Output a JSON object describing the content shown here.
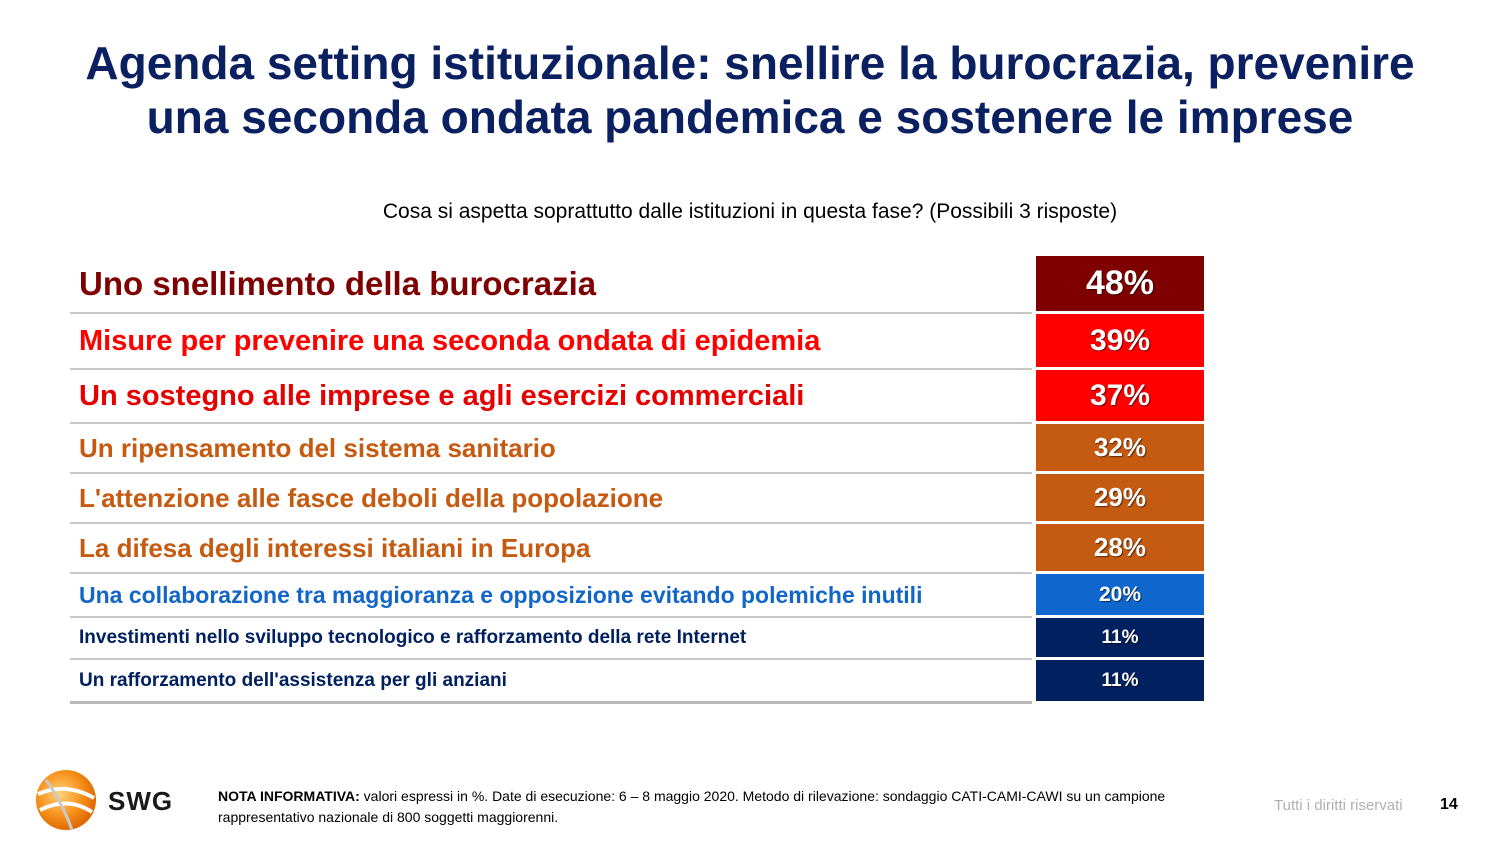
{
  "title_line1": "Agenda setting istituzionale: snellire la burocrazia, prevenire",
  "title_line2": "una seconda ondata pandemica e sostenere le imprese",
  "question": "Cosa si aspetta soprattutto dalle istituzioni in questa fase? (Possibili 3 risposte)",
  "rows": [
    {
      "label": "Uno snellimento della burocrazia",
      "value": "48%",
      "text_color": "#7f0000",
      "bg": "#7f0000"
    },
    {
      "label": "Misure per prevenire una seconda ondata di epidemia",
      "value": "39%",
      "text_color": "#ff0000",
      "bg": "#ff0000"
    },
    {
      "label": "Un sostegno alle imprese e agli esercizi commerciali",
      "value": "37%",
      "text_color": "#e60000",
      "bg": "#ff0000"
    },
    {
      "label": "Un ripensamento del sistema sanitario",
      "value": "32%",
      "text_color": "#c55a11",
      "bg": "#c55a11"
    },
    {
      "label": "L'attenzione alle fasce deboli della popolazione",
      "value": "29%",
      "text_color": "#c55a11",
      "bg": "#c55a11"
    },
    {
      "label": "La difesa degli interessi italiani in Europa",
      "value": "28%",
      "text_color": "#c55a11",
      "bg": "#c55a11"
    },
    {
      "label": "Una collaborazione tra maggioranza e opposizione evitando polemiche inutili",
      "value": "20%",
      "text_color": "#1266c7",
      "bg": "#0f66cc"
    },
    {
      "label": "Investimenti nello sviluppo tecnologico e rafforzamento della rete Internet",
      "value": "11%",
      "text_color": "#002060",
      "bg": "#002060"
    },
    {
      "label": "Un rafforzamento dell'assistenza per gli anziani",
      "value": "11%",
      "text_color": "#002060",
      "bg": "#002060"
    }
  ],
  "logo_text": "SWG",
  "note_label": "NOTA INFORMATIVA:",
  "note_text": " valori espressi in %. Date di esecuzione: 6 – 8 maggio 2020. Metodo di rilevazione: sondaggio CATI-CAMI-CAWI su un campione rappresentativo nazionale di 800 soggetti maggiorenni.",
  "rights": "Tutti i diritti riservati",
  "page_number": "14"
}
